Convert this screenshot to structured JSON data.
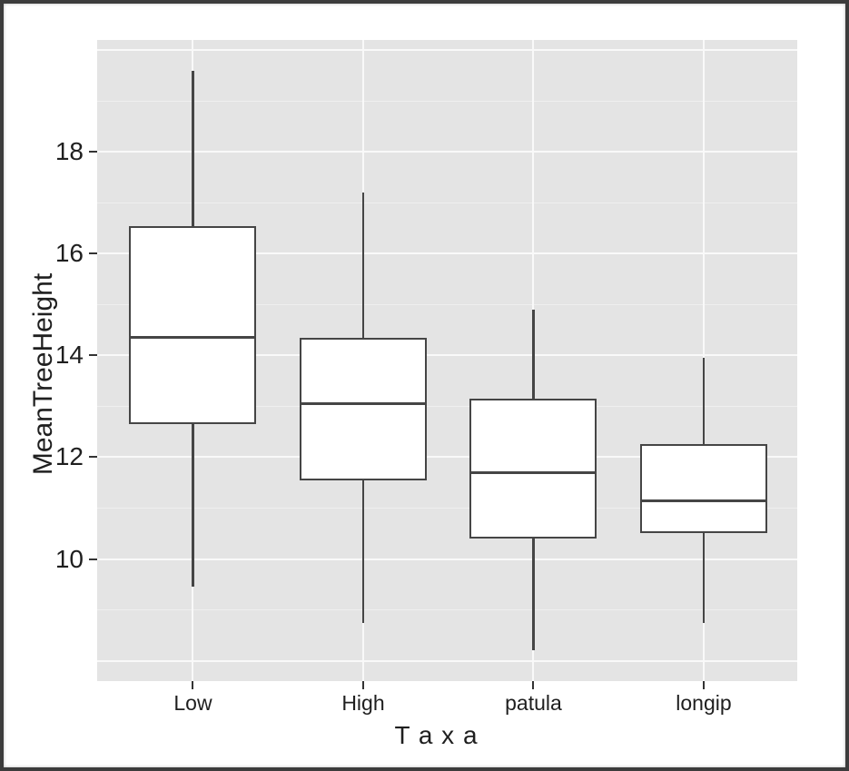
{
  "chart_data": {
    "type": "boxplot",
    "title": "",
    "xlabel": "T a x a",
    "ylabel": "MeanTreeHeight",
    "categories": [
      "Low",
      "High",
      "patula",
      "longip"
    ],
    "boxes": [
      {
        "category": "Low",
        "whisker_low": 9.45,
        "q1": 12.65,
        "median": 14.35,
        "q3": 16.55,
        "whisker_high": 19.6
      },
      {
        "category": "High",
        "whisker_low": 8.75,
        "q1": 11.55,
        "median": 13.05,
        "q3": 14.35,
        "whisker_high": 17.2
      },
      {
        "category": "patula",
        "whisker_low": 8.2,
        "q1": 10.4,
        "median": 11.7,
        "q3": 13.15,
        "whisker_high": 14.9
      },
      {
        "category": "longip",
        "whisker_low": 8.75,
        "q1": 10.5,
        "median": 11.15,
        "q3": 12.25,
        "whisker_high": 13.95
      }
    ],
    "y_ticks": [
      18,
      16,
      14,
      12,
      10
    ],
    "ylim": [
      7.6,
      20.2
    ],
    "grid": "on",
    "gridlines_major": [
      8,
      10,
      12,
      14,
      16,
      18,
      20
    ],
    "gridlines_minor": [
      9,
      11,
      13,
      15,
      17,
      19
    ],
    "legend": "none",
    "outliers": []
  },
  "style": {
    "figure_bg": "#ffffff",
    "figure_border": "#3c3c3c",
    "panel_bg": "#e4e4e4",
    "grid_major": "#f9f9f9",
    "grid_minor": "#efefef",
    "box_fill": "#ffffff",
    "box_stroke": "#454545",
    "tick_color": "#333333",
    "text_color": "#1f1f1f"
  }
}
